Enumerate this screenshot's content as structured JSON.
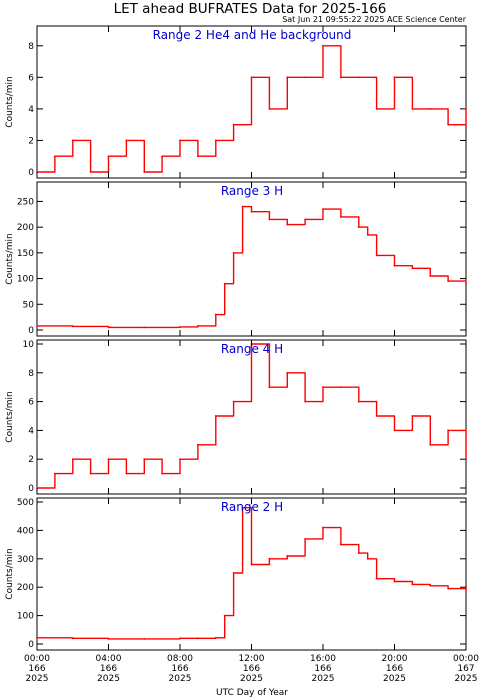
{
  "page": {
    "title": "LET ahead BUFRATES Data for 2025-166",
    "timestamp": "Sat Jun 21 09:55:22 2025 ACE Science Center",
    "x_axis_label": "UTC Day of Year",
    "series_color": "#ff0000",
    "label_color": "#0000cc"
  },
  "chart_data": [
    {
      "type": "line",
      "panel_label": "Range 2 He4 and He background",
      "ylabel": "Counts/min",
      "ylim": [
        0,
        9
      ],
      "yticks": [
        0,
        2,
        4,
        6,
        8
      ],
      "x_unit": "hours UTC, 2025 day 166",
      "xlim": [
        0,
        24
      ],
      "x": [
        0,
        1,
        2,
        3,
        4,
        5,
        6,
        7,
        8,
        9,
        10,
        11,
        12,
        13,
        14,
        15,
        16,
        17,
        18,
        19,
        20,
        21,
        22,
        23,
        24
      ],
      "y": [
        0,
        1,
        2,
        0,
        1,
        2,
        0,
        1,
        2,
        1,
        2,
        3,
        6,
        4,
        6,
        6,
        8,
        6,
        6,
        4,
        6,
        4,
        4,
        3,
        4
      ]
    },
    {
      "type": "line",
      "panel_label": "Range 3 H",
      "ylabel": "Counts/min",
      "ylim": [
        0,
        280
      ],
      "yticks": [
        0,
        50,
        100,
        150,
        200,
        250
      ],
      "x_unit": "hours UTC, 2025 day 166",
      "xlim": [
        0,
        24
      ],
      "x": [
        0,
        2,
        4,
        6,
        8,
        9,
        10,
        10.5,
        11,
        11.5,
        12,
        13,
        14,
        15,
        16,
        17,
        18,
        18.5,
        19,
        20,
        21,
        22,
        23,
        24
      ],
      "y": [
        8,
        7,
        5,
        5,
        6,
        8,
        30,
        90,
        150,
        240,
        230,
        215,
        205,
        215,
        235,
        220,
        200,
        185,
        145,
        125,
        120,
        105,
        95,
        90
      ]
    },
    {
      "type": "line",
      "panel_label": "Range 4 H",
      "ylabel": "Counts/min",
      "ylim": [
        0,
        10
      ],
      "yticks": [
        0,
        2,
        4,
        6,
        8,
        10
      ],
      "x_unit": "hours UTC, 2025 day 166",
      "xlim": [
        0,
        24
      ],
      "x": [
        0,
        1,
        2,
        3,
        4,
        5,
        6,
        7,
        8,
        9,
        10,
        11,
        12,
        13,
        14,
        15,
        16,
        17,
        18,
        19,
        20,
        21,
        22,
        23,
        24
      ],
      "y": [
        0,
        1,
        2,
        1,
        2,
        1,
        2,
        1,
        2,
        3,
        5,
        6,
        10,
        7,
        8,
        6,
        7,
        7,
        6,
        5,
        4,
        5,
        3,
        4,
        2
      ]
    },
    {
      "type": "line",
      "panel_label": "Range 2 H",
      "ylabel": "Counts/min",
      "ylim": [
        0,
        500
      ],
      "yticks": [
        0,
        100,
        200,
        300,
        400,
        500
      ],
      "x_unit": "hours UTC, 2025 day 166",
      "xlim": [
        0,
        24
      ],
      "x": [
        0,
        2,
        4,
        6,
        8,
        9,
        10,
        10.5,
        11,
        11.5,
        12,
        13,
        14,
        15,
        16,
        17,
        18,
        18.5,
        19,
        20,
        21,
        22,
        23,
        24
      ],
      "y": [
        22,
        20,
        18,
        18,
        20,
        20,
        22,
        100,
        250,
        480,
        280,
        300,
        310,
        370,
        410,
        350,
        320,
        300,
        230,
        220,
        210,
        205,
        195,
        190
      ]
    }
  ],
  "x_ticks": [
    {
      "time": "00:00",
      "doy": "166",
      "year": "2025"
    },
    {
      "time": "04:00",
      "doy": "166",
      "year": "2025"
    },
    {
      "time": "08:00",
      "doy": "166",
      "year": "2025"
    },
    {
      "time": "12:00",
      "doy": "166",
      "year": "2025"
    },
    {
      "time": "16:00",
      "doy": "166",
      "year": "2025"
    },
    {
      "time": "20:00",
      "doy": "166",
      "year": "2025"
    },
    {
      "time": "00:00",
      "doy": "167",
      "year": "2025"
    }
  ]
}
